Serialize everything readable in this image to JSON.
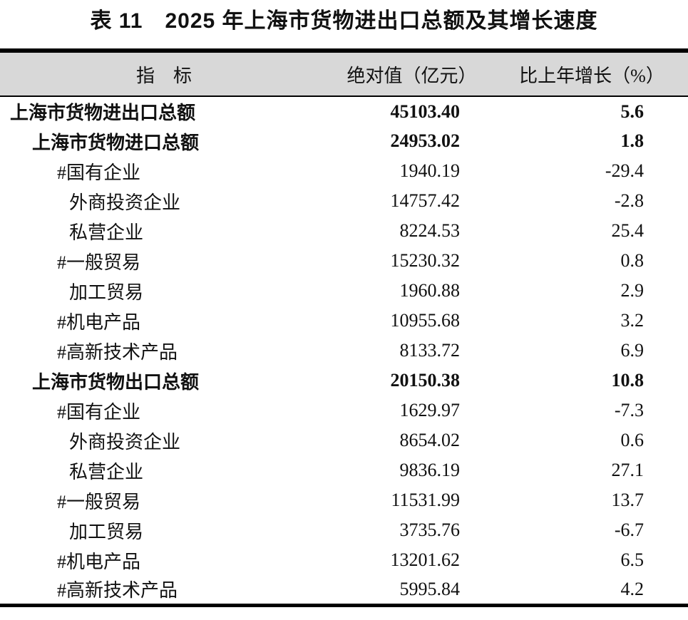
{
  "title": "表 11　2025 年上海市货物进出口总额及其增长速度",
  "table": {
    "columns": [
      {
        "label": "指　标"
      },
      {
        "label": "绝对值（亿元）"
      },
      {
        "label": "比上年增长（%）"
      }
    ],
    "rows": [
      {
        "indicator": "上海市货物进出口总额",
        "value": "45103.40",
        "growth": "5.6"
      },
      {
        "indicator": "上海市货物进口总额",
        "value": "24953.02",
        "growth": "1.8"
      },
      {
        "indicator": "#国有企业",
        "value": "1940.19",
        "growth": "-29.4"
      },
      {
        "indicator": "外商投资企业",
        "value": "14757.42",
        "growth": "-2.8"
      },
      {
        "indicator": "私营企业",
        "value": "8224.53",
        "growth": "25.4"
      },
      {
        "indicator": "#一般贸易",
        "value": "15230.32",
        "growth": "0.8"
      },
      {
        "indicator": "加工贸易",
        "value": "1960.88",
        "growth": "2.9"
      },
      {
        "indicator": "#机电产品",
        "value": "10955.68",
        "growth": "3.2"
      },
      {
        "indicator": "#高新技术产品",
        "value": "8133.72",
        "growth": "6.9"
      },
      {
        "indicator": "上海市货物出口总额",
        "value": "20150.38",
        "growth": "10.8"
      },
      {
        "indicator": "#国有企业",
        "value": "1629.97",
        "growth": "-7.3"
      },
      {
        "indicator": "外商投资企业",
        "value": "8654.02",
        "growth": "0.6"
      },
      {
        "indicator": "私营企业",
        "value": "9836.19",
        "growth": "27.1"
      },
      {
        "indicator": "#一般贸易",
        "value": "11531.99",
        "growth": "13.7"
      },
      {
        "indicator": "加工贸易",
        "value": "3735.76",
        "growth": "-6.7"
      },
      {
        "indicator": "#机电产品",
        "value": "13201.62",
        "growth": "6.5"
      },
      {
        "indicator": "#高新技术产品",
        "value": "5995.84",
        "growth": "4.2"
      }
    ]
  },
  "colors": {
    "header_bg": "#d8d8d8",
    "rule": "#000000",
    "text": "#111111"
  }
}
